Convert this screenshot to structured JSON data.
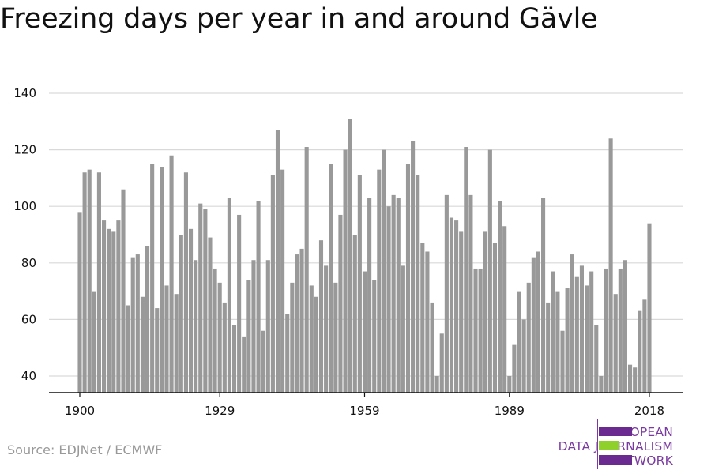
{
  "title": "Freezing days per year in and around Gävle",
  "source": "Source: EDJNet / ECMWF",
  "logo": {
    "line1": "EUROPEAN",
    "line2": "DATA JOURNALISM",
    "line3": "NETWORK",
    "colors": {
      "purple": "#6b2a8f",
      "green": "#8fd12a",
      "text": "#7a3aa0"
    }
  },
  "chart_data": {
    "type": "bar",
    "title": "Freezing days per year in and around Gävle",
    "xlabel": "",
    "ylabel": "",
    "x_start": 1900,
    "x_ticks": [
      1900,
      1929,
      1959,
      1989,
      2018
    ],
    "y_ticks": [
      40,
      60,
      80,
      100,
      120,
      140
    ],
    "ylim": [
      34,
      140
    ],
    "grid": true,
    "bar_color": "#999999",
    "values": [
      98,
      112,
      113,
      70,
      112,
      95,
      92,
      91,
      95,
      106,
      65,
      82,
      83,
      68,
      86,
      115,
      64,
      114,
      72,
      118,
      69,
      90,
      112,
      92,
      81,
      101,
      99,
      89,
      78,
      73,
      66,
      103,
      58,
      97,
      54,
      74,
      81,
      102,
      56,
      81,
      111,
      127,
      113,
      62,
      73,
      83,
      85,
      121,
      72,
      68,
      88,
      79,
      115,
      73,
      97,
      120,
      131,
      90,
      111,
      77,
      103,
      74,
      113,
      120,
      100,
      104,
      103,
      79,
      115,
      123,
      111,
      87,
      84,
      66,
      40,
      55,
      104,
      96,
      95,
      91,
      121,
      104,
      78,
      78,
      91,
      120,
      87,
      102,
      93,
      40,
      51,
      70,
      60,
      73,
      82,
      84,
      103,
      66,
      77,
      70,
      56,
      71,
      83,
      75,
      79,
      72,
      77,
      58,
      40,
      78,
      124,
      69,
      78,
      81,
      44,
      43,
      63,
      67,
      94
    ]
  }
}
